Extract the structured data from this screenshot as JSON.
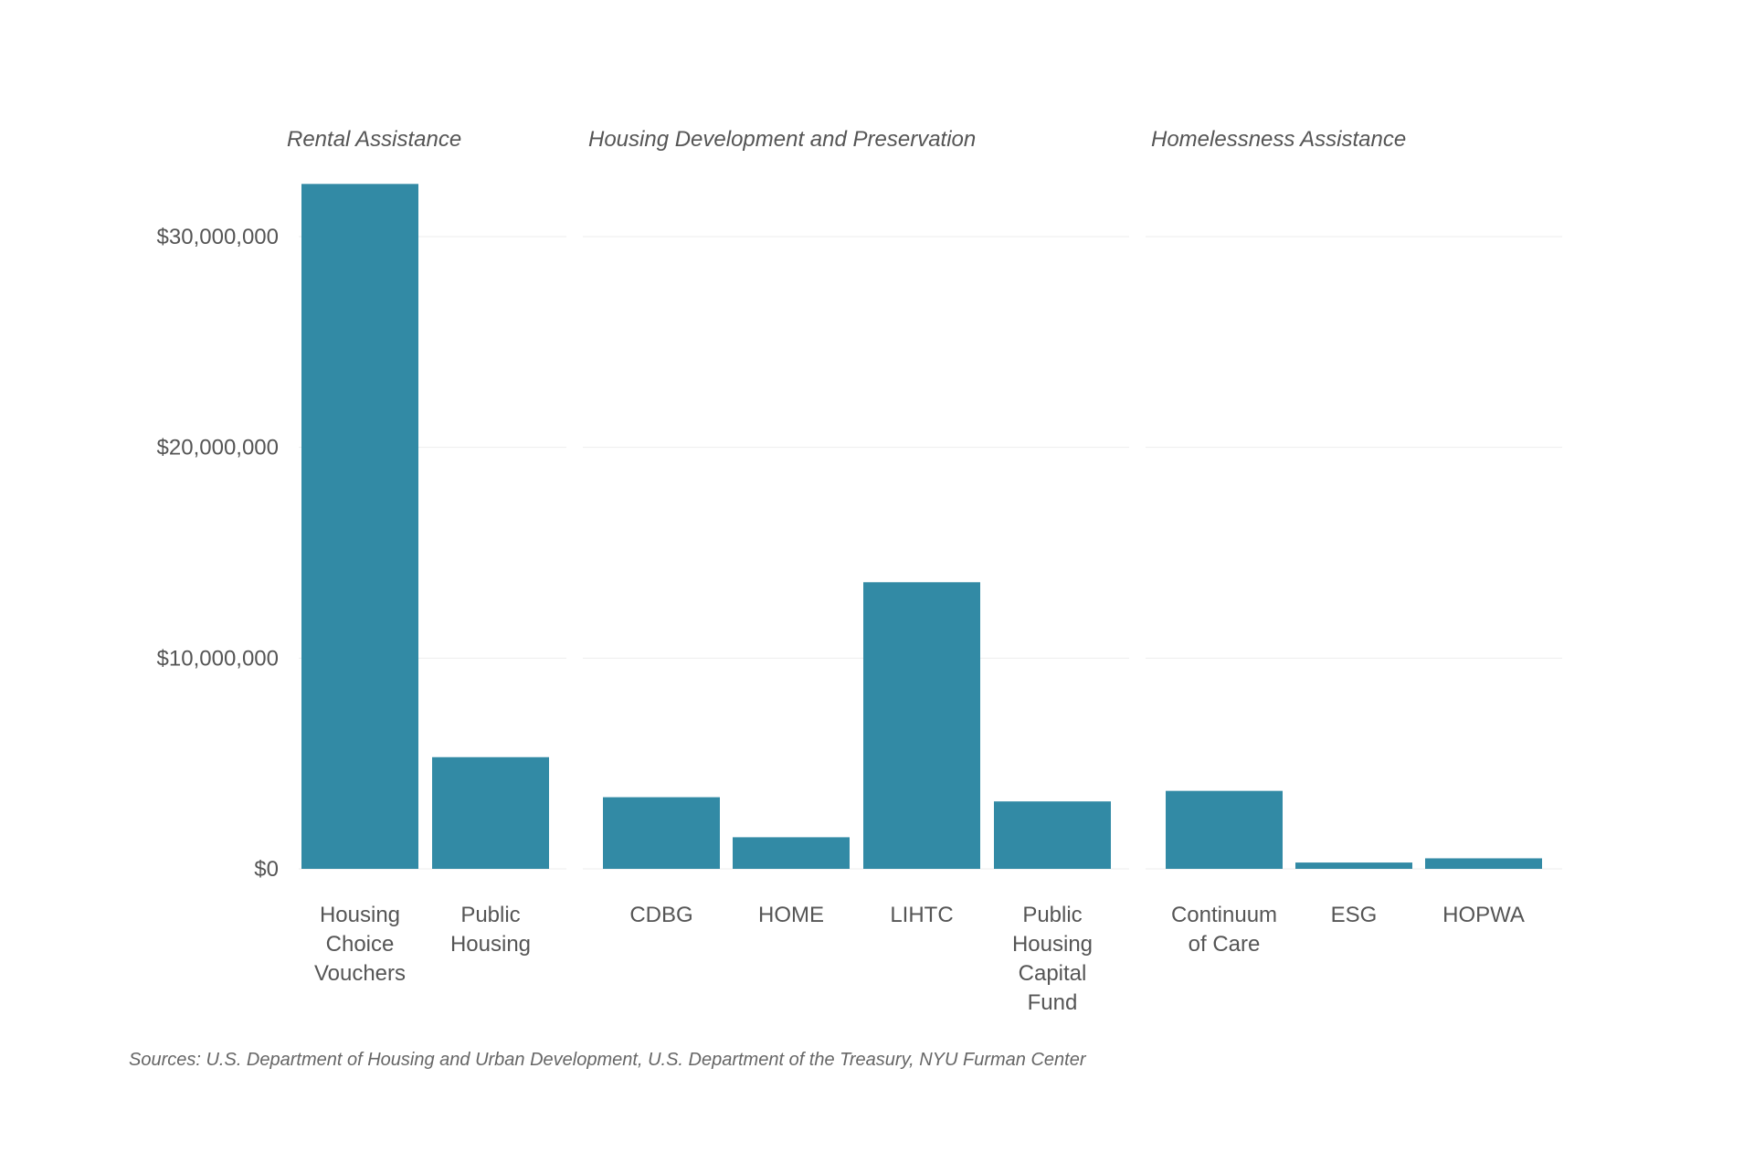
{
  "chart_data": {
    "type": "bar",
    "title": "",
    "xlabel": "",
    "ylabel": "",
    "ylim": [
      0,
      32500000
    ],
    "yticks": [
      {
        "value": 0,
        "label": "$0"
      },
      {
        "value": 10000000,
        "label": "$10,000,000"
      },
      {
        "value": 20000000,
        "label": "$20,000,000"
      },
      {
        "value": 30000000,
        "label": "$30,000,000"
      }
    ],
    "grid": true,
    "bar_color": "#328aa5",
    "groups": [
      {
        "name": "Rental Assistance",
        "categories": [
          {
            "label": "Housing Choice Vouchers",
            "lines": [
              "Housing",
              "Choice",
              "Vouchers"
            ],
            "value": 32500000
          },
          {
            "label": "Public Housing",
            "lines": [
              "Public",
              "Housing"
            ],
            "value": 5300000
          }
        ]
      },
      {
        "name": "Housing Development and Preservation",
        "categories": [
          {
            "label": "CDBG",
            "lines": [
              "CDBG"
            ],
            "value": 3400000
          },
          {
            "label": "HOME",
            "lines": [
              "HOME"
            ],
            "value": 1500000
          },
          {
            "label": "LIHTC",
            "lines": [
              "LIHTC"
            ],
            "value": 13600000
          },
          {
            "label": "Public Housing Capital Fund",
            "lines": [
              "Public",
              "Housing",
              "Capital",
              "Fund"
            ],
            "value": 3200000
          }
        ]
      },
      {
        "name": "Homelessness Assistance",
        "categories": [
          {
            "label": "Continuum of Care",
            "lines": [
              "Continuum",
              "of Care"
            ],
            "value": 3700000
          },
          {
            "label": "ESG",
            "lines": [
              "ESG"
            ],
            "value": 300000
          },
          {
            "label": "HOPWA",
            "lines": [
              "HOPWA"
            ],
            "value": 500000
          }
        ]
      }
    ],
    "source": "Sources: U.S. Department of Housing and Urban Development, U.S. Department of the Treasury, NYU Furman Center"
  }
}
